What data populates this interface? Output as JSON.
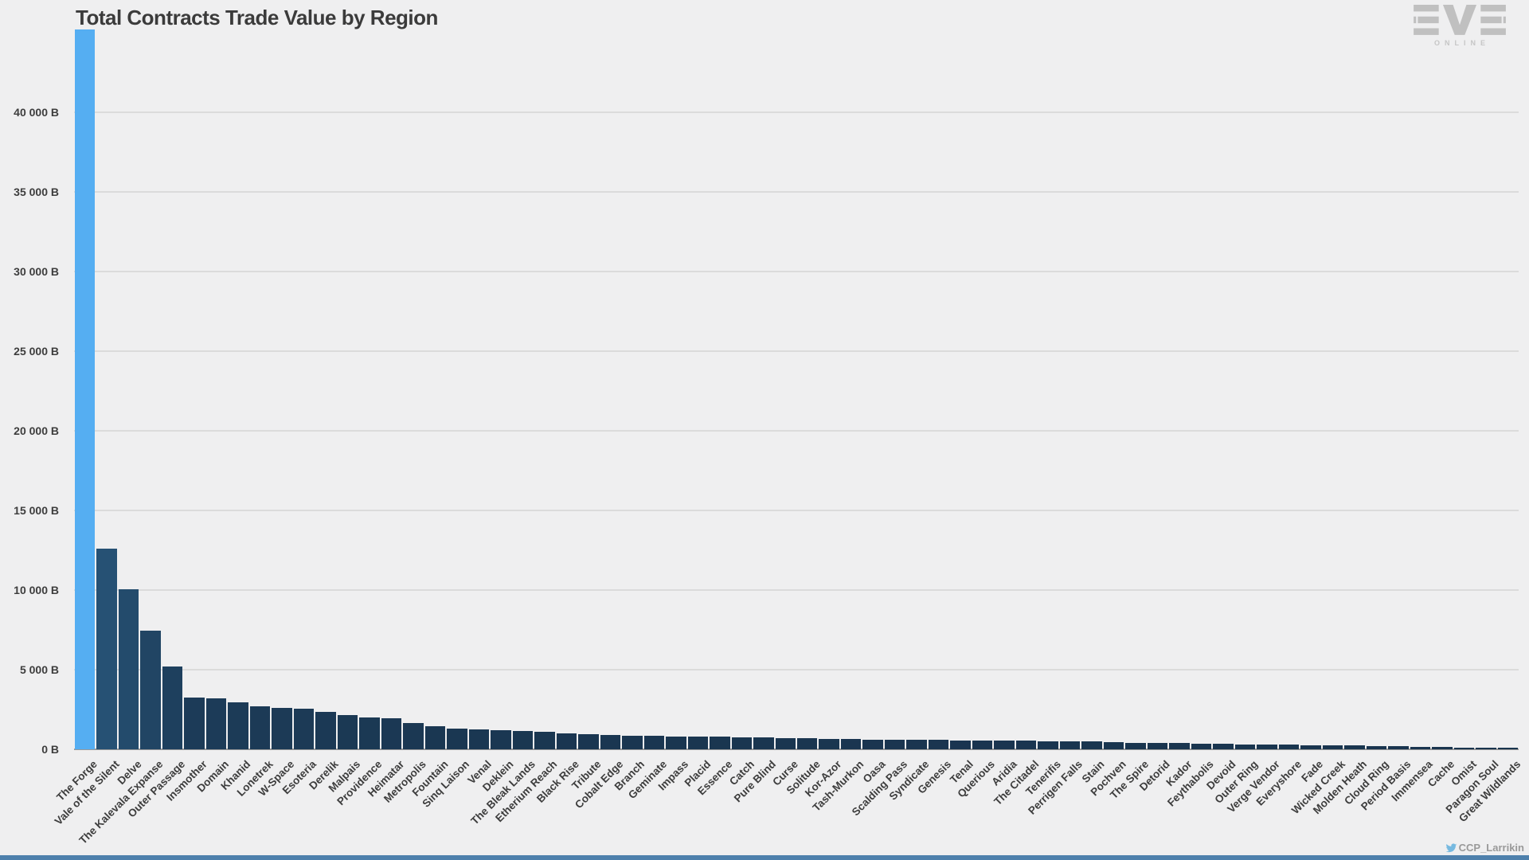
{
  "title": "Total Contracts Trade Value by Region",
  "branding": {
    "logo_text": "EVE",
    "logo_subtext": "ONLINE"
  },
  "credit": {
    "handle": "CCP_Larrikin",
    "icon": "twitter-bird-icon"
  },
  "colors": {
    "background": "#efeff0",
    "highlight_bar": "#55aef2",
    "bar_dark": "#19344e",
    "bar_light": "#265174",
    "grid": "#dbdbdb",
    "axis_line": "#9a9a9a",
    "text": "#3d3d3d",
    "logo_gray": "#c0c0c0",
    "credit_text": "#999999",
    "twitter_blue": "#76b9e0",
    "footer_bar": "#4e80ac"
  },
  "chart_data": {
    "type": "bar",
    "title": "Total Contracts Trade Value by Region",
    "xlabel": "",
    "ylabel": "",
    "unit": "B (billions ISK)",
    "ylim": [
      0,
      45200
    ],
    "grid": "horizontal",
    "legend": "none",
    "y_ticks": {
      "values": [
        0,
        5000,
        10000,
        15000,
        20000,
        25000,
        30000,
        35000,
        40000
      ],
      "labels": [
        "0 B",
        "5 000 B",
        "10 000 B",
        "15 000 B",
        "20 000 B",
        "25 000 B",
        "30 000 B",
        "35 000 B",
        "40 000 B"
      ]
    },
    "categories": [
      "The Forge",
      "Vale of the Silent",
      "Delve",
      "The Kalevala Expanse",
      "Outer Passage",
      "Insmother",
      "Domain",
      "Khanid",
      "Lonetrek",
      "W-Space",
      "Esoteria",
      "Derelik",
      "Malpais",
      "Providence",
      "Heimatar",
      "Metropolis",
      "Fountain",
      "Sinq Laison",
      "Venal",
      "Deklein",
      "The Bleak Lands",
      "Etherium Reach",
      "Black Rise",
      "Tribute",
      "Cobalt Edge",
      "Branch",
      "Geminate",
      "Impass",
      "Placid",
      "Essence",
      "Catch",
      "Pure Blind",
      "Curse",
      "Solitude",
      "Kor-Azor",
      "Tash-Murkon",
      "Oasa",
      "Scalding Pass",
      "Syndicate",
      "Genesis",
      "Tenal",
      "Querious",
      "Aridia",
      "The Citadel",
      "Tenerifis",
      "Perrigen Falls",
      "Stain",
      "Pochven",
      "The Spire",
      "Detorid",
      "Kador",
      "Feythabolis",
      "Devoid",
      "Outer Ring",
      "Verge Vendor",
      "Everyshore",
      "Fade",
      "Wicked Creek",
      "Molden Heath",
      "Cloud Ring",
      "Period Basis",
      "Immensea",
      "Cache",
      "Omist",
      "Paragon Soul",
      "Great Wildlands"
    ],
    "values": [
      45200,
      12600,
      10050,
      7450,
      5200,
      3250,
      3200,
      2950,
      2700,
      2600,
      2550,
      2350,
      2150,
      2000,
      1950,
      1650,
      1450,
      1300,
      1250,
      1200,
      1150,
      1100,
      1000,
      950,
      900,
      870,
      840,
      820,
      800,
      780,
      760,
      730,
      700,
      680,
      660,
      640,
      620,
      600,
      590,
      580,
      570,
      560,
      550,
      540,
      520,
      500,
      480,
      450,
      420,
      400,
      380,
      360,
      340,
      320,
      300,
      290,
      270,
      250,
      230,
      210,
      190,
      170,
      140,
      120,
      100,
      60
    ]
  }
}
